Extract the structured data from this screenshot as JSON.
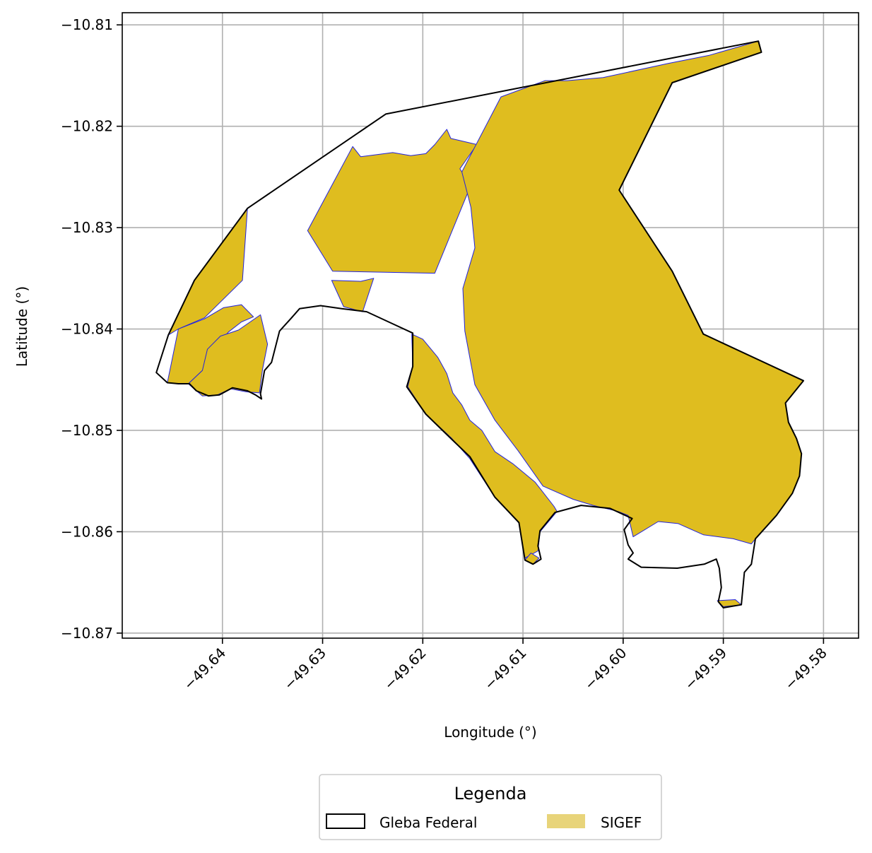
{
  "chart_data": {
    "type": "map",
    "xlabel": "Longitude (°)",
    "ylabel": "Latitude (°)",
    "xlim": [
      -49.65,
      -49.5765
    ],
    "ylim": [
      -10.8705,
      -10.8088
    ],
    "x_ticks": [
      -49.64,
      -49.63,
      -49.62,
      -49.61,
      -49.6,
      -49.59,
      -49.58
    ],
    "x_tick_labels": [
      "−49.64",
      "−49.63",
      "−49.62",
      "−49.61",
      "−49.60",
      "−49.59",
      "−49.58"
    ],
    "y_ticks": [
      -10.81,
      -10.82,
      -10.83,
      -10.84,
      -10.85,
      -10.86,
      -10.87
    ],
    "y_tick_labels": [
      "−10.81",
      "−10.82",
      "−10.83",
      "−10.84",
      "−10.85",
      "−10.86",
      "−10.87"
    ],
    "grid": true,
    "legend": {
      "title": "Legenda",
      "placement": "bottom-center",
      "entries": [
        {
          "label": "Gleba Federal",
          "style": "outline",
          "color": "#000000"
        },
        {
          "label": "SIGEF",
          "style": "fill",
          "color": "#e8d47a"
        }
      ]
    },
    "colors": {
      "gleba_outline": "#000000",
      "sigef_fill": "#dfbd1f",
      "sigef_edge": "#2222dd"
    },
    "layers": {
      "gleba_federal": [
        [
          [
            -49.6466,
            -10.8443
          ],
          [
            -49.6454,
            -10.8406
          ],
          [
            -49.6428,
            -10.8352
          ],
          [
            -49.6375,
            -10.8281
          ],
          [
            -49.6237,
            -10.8188
          ],
          [
            -49.5865,
            -10.8116
          ],
          [
            -49.5862,
            -10.8127
          ],
          [
            -49.5951,
            -10.8157
          ],
          [
            -49.6004,
            -10.8263
          ],
          [
            -49.5951,
            -10.8343
          ],
          [
            -49.592,
            -10.8405
          ],
          [
            -49.582,
            -10.8451
          ],
          [
            -49.5838,
            -10.8473
          ],
          [
            -49.5835,
            -10.8492
          ],
          [
            -49.5827,
            -10.8508
          ],
          [
            -49.5822,
            -10.8523
          ],
          [
            -49.5824,
            -10.8545
          ],
          [
            -49.5831,
            -10.8562
          ],
          [
            -49.5847,
            -10.8584
          ],
          [
            -49.5868,
            -10.8607
          ],
          [
            -49.5872,
            -10.8632
          ],
          [
            -49.5879,
            -10.864
          ],
          [
            -49.5882,
            -10.8672
          ],
          [
            -49.59,
            -10.8675
          ],
          [
            -49.5905,
            -10.8669
          ],
          [
            -49.5902,
            -10.8655
          ],
          [
            -49.5904,
            -10.8636
          ],
          [
            -49.5907,
            -10.8627
          ],
          [
            -49.5919,
            -10.8632
          ],
          [
            -49.5946,
            -10.8636
          ],
          [
            -49.5982,
            -10.8635
          ],
          [
            -49.5995,
            -10.8627
          ],
          [
            -49.599,
            -10.8621
          ],
          [
            -49.5995,
            -10.8613
          ],
          [
            -49.5999,
            -10.8598
          ],
          [
            -49.5991,
            -10.8587
          ],
          [
            -49.6013,
            -10.8577
          ],
          [
            -49.6042,
            -10.8574
          ],
          [
            -49.6068,
            -10.8581
          ],
          [
            -49.6083,
            -10.8599
          ],
          [
            -49.6085,
            -10.8614
          ],
          [
            -49.6082,
            -10.8627
          ],
          [
            -49.609,
            -10.8632
          ],
          [
            -49.6098,
            -10.8628
          ],
          [
            -49.6104,
            -10.8591
          ],
          [
            -49.6128,
            -10.8566
          ],
          [
            -49.6153,
            -10.8526
          ],
          [
            -49.6172,
            -10.8508
          ],
          [
            -49.6197,
            -10.8484
          ],
          [
            -49.6216,
            -10.8457
          ],
          [
            -49.621,
            -10.8437
          ],
          [
            -49.621,
            -10.8404
          ],
          [
            -49.6232,
            -10.8394
          ],
          [
            -49.6256,
            -10.8383
          ],
          [
            -49.6281,
            -10.838
          ],
          [
            -49.6302,
            -10.8377
          ],
          [
            -49.6323,
            -10.838
          ],
          [
            -49.6331,
            -10.8389
          ],
          [
            -49.6343,
            -10.8402
          ],
          [
            -49.6351,
            -10.8433
          ],
          [
            -49.6358,
            -10.8441
          ],
          [
            -49.6362,
            -10.8464
          ],
          [
            -49.6361,
            -10.8469
          ],
          [
            -49.6367,
            -10.8465
          ],
          [
            -49.6375,
            -10.8461
          ],
          [
            -49.639,
            -10.8458
          ],
          [
            -49.6403,
            -10.8465
          ],
          [
            -49.6414,
            -10.8466
          ],
          [
            -49.6426,
            -10.8461
          ],
          [
            -49.6433,
            -10.8454
          ],
          [
            -49.6444,
            -10.8454
          ],
          [
            -49.6455,
            -10.8453
          ]
        ]
      ],
      "sigef": [
        [
          [
            -49.6455,
            -10.8453
          ],
          [
            -49.6444,
            -10.84
          ],
          [
            -49.6418,
            -10.839
          ],
          [
            -49.6399,
            -10.8379
          ],
          [
            -49.6381,
            -10.8376
          ],
          [
            -49.6369,
            -10.8388
          ],
          [
            -49.6381,
            -10.8393
          ],
          [
            -49.6394,
            -10.8403
          ],
          [
            -49.6406,
            -10.8417
          ],
          [
            -49.6413,
            -10.843
          ],
          [
            -49.642,
            -10.8441
          ],
          [
            -49.6434,
            -10.8454
          ],
          [
            -49.6444,
            -10.8454
          ]
        ],
        [
          [
            -49.6434,
            -10.8454
          ],
          [
            -49.642,
            -10.8441
          ],
          [
            -49.6415,
            -10.842
          ],
          [
            -49.6402,
            -10.8407
          ],
          [
            -49.6384,
            -10.8401
          ],
          [
            -49.6362,
            -10.8386
          ],
          [
            -49.6355,
            -10.8415
          ],
          [
            -49.636,
            -10.844
          ],
          [
            -49.6363,
            -10.8463
          ],
          [
            -49.6376,
            -10.8462
          ],
          [
            -49.6392,
            -10.8459
          ],
          [
            -49.6405,
            -10.8465
          ],
          [
            -49.642,
            -10.8466
          ],
          [
            -49.6433,
            -10.8455
          ]
        ],
        [
          [
            -49.6428,
            -10.8352
          ],
          [
            -49.6375,
            -10.8281
          ],
          [
            -49.638,
            -10.8352
          ],
          [
            -49.6418,
            -10.8389
          ],
          [
            -49.6444,
            -10.84
          ],
          [
            -49.6454,
            -10.8406
          ]
        ],
        [
          [
            -49.6315,
            -10.8303
          ],
          [
            -49.627,
            -10.822
          ],
          [
            -49.6262,
            -10.823
          ],
          [
            -49.623,
            -10.8226
          ],
          [
            -49.6212,
            -10.8229
          ],
          [
            -49.6197,
            -10.8227
          ],
          [
            -49.6188,
            -10.8218
          ],
          [
            -49.6176,
            -10.8203
          ],
          [
            -49.6172,
            -10.8212
          ],
          [
            -49.6146,
            -10.8218
          ],
          [
            -49.6163,
            -10.8242
          ],
          [
            -49.6152,
            -10.8258
          ],
          [
            -49.6188,
            -10.8345
          ],
          [
            -49.629,
            -10.8343
          ]
        ],
        [
          [
            -49.6291,
            -10.8352
          ],
          [
            -49.6262,
            -10.8353
          ],
          [
            -49.6249,
            -10.835
          ],
          [
            -49.626,
            -10.8383
          ],
          [
            -49.6279,
            -10.8378
          ]
        ],
        [
          [
            -49.6211,
            -10.8405
          ],
          [
            -49.621,
            -10.8437
          ],
          [
            -49.6215,
            -10.8457
          ],
          [
            -49.6197,
            -10.8484
          ],
          [
            -49.6171,
            -10.8508
          ],
          [
            -49.6153,
            -10.8528
          ],
          [
            -49.6128,
            -10.8566
          ],
          [
            -49.6104,
            -10.8591
          ],
          [
            -49.6098,
            -10.8626
          ],
          [
            -49.6085,
            -10.8619
          ],
          [
            -49.6083,
            -10.86
          ],
          [
            -49.6066,
            -10.858
          ],
          [
            -49.6069,
            -10.8575
          ],
          [
            -49.6088,
            -10.8551
          ],
          [
            -49.611,
            -10.8533
          ],
          [
            -49.6128,
            -10.8521
          ],
          [
            -49.6141,
            -10.85
          ],
          [
            -49.6153,
            -10.849
          ],
          [
            -49.6161,
            -10.8475
          ],
          [
            -49.617,
            -10.8463
          ],
          [
            -49.6176,
            -10.8444
          ],
          [
            -49.6185,
            -10.8428
          ],
          [
            -49.62,
            -10.841
          ]
        ],
        [
          [
            -49.6161,
            -10.8245
          ],
          [
            -49.6122,
            -10.8171
          ],
          [
            -49.6078,
            -10.8155
          ],
          [
            -49.6056,
            -10.8155
          ],
          [
            -49.602,
            -10.8152
          ],
          [
            -49.5955,
            -10.8138
          ],
          [
            -49.5914,
            -10.813
          ],
          [
            -49.5865,
            -10.8116
          ],
          [
            -49.5862,
            -10.8127
          ],
          [
            -49.5951,
            -10.8157
          ],
          [
            -49.6004,
            -10.8263
          ],
          [
            -49.5951,
            -10.8343
          ],
          [
            -49.592,
            -10.8405
          ],
          [
            -49.582,
            -10.8451
          ],
          [
            -49.5838,
            -10.8473
          ],
          [
            -49.5835,
            -10.8492
          ],
          [
            -49.5827,
            -10.8508
          ],
          [
            -49.5822,
            -10.8523
          ],
          [
            -49.5824,
            -10.8545
          ],
          [
            -49.5831,
            -10.8562
          ],
          [
            -49.5847,
            -10.8584
          ],
          [
            -49.5868,
            -10.8607
          ],
          [
            -49.5872,
            -10.8612
          ],
          [
            -49.589,
            -10.8607
          ],
          [
            -49.592,
            -10.8603
          ],
          [
            -49.5945,
            -10.8592
          ],
          [
            -49.5965,
            -10.859
          ],
          [
            -49.599,
            -10.8605
          ],
          [
            -49.5995,
            -10.8584
          ],
          [
            -49.6005,
            -10.858
          ],
          [
            -49.603,
            -10.8574
          ],
          [
            -49.605,
            -10.8568
          ],
          [
            -49.608,
            -10.8555
          ],
          [
            -49.6105,
            -10.852
          ],
          [
            -49.6128,
            -10.849
          ],
          [
            -49.6148,
            -10.8455
          ],
          [
            -49.6158,
            -10.8402
          ],
          [
            -49.616,
            -10.836
          ],
          [
            -49.6148,
            -10.832
          ],
          [
            -49.6152,
            -10.828
          ]
        ],
        [
          [
            -49.5906,
            -10.8668
          ],
          [
            -49.59,
            -10.8674
          ],
          [
            -49.5882,
            -10.8672
          ],
          [
            -49.5888,
            -10.8667
          ]
        ],
        [
          [
            -49.6098,
            -10.8628
          ],
          [
            -49.609,
            -10.8632
          ],
          [
            -49.6084,
            -10.8626
          ],
          [
            -49.6092,
            -10.8621
          ]
        ]
      ]
    }
  }
}
